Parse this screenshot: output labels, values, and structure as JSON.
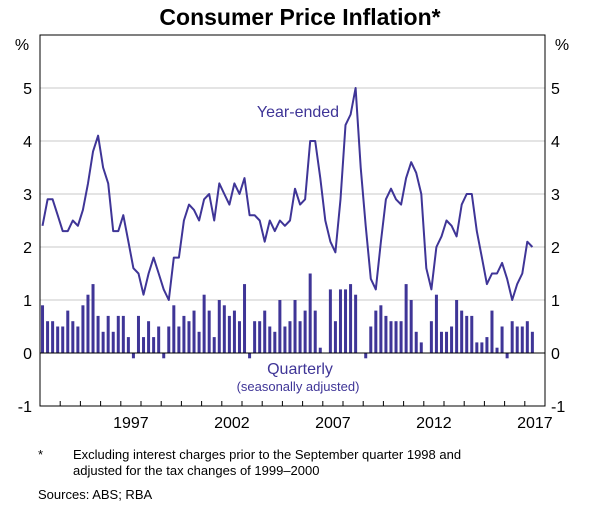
{
  "chart_data": {
    "type": "bar+line",
    "title": "Consumer Price Inflation*",
    "ylabel_left": "%",
    "ylabel_right": "%",
    "ylim": [
      -1,
      6
    ],
    "yticks": [
      "-1",
      "0",
      "1",
      "2",
      "3",
      "4",
      "5"
    ],
    "xlim": [
      "1993 Q1",
      "2017 Q4"
    ],
    "xtick_labels": [
      "1997",
      "2002",
      "2007",
      "2012",
      "2017"
    ],
    "grid": true,
    "colors": {
      "series": "#3f3597",
      "grid": "#c8c8c8"
    },
    "start_quarter": "1993 Q1",
    "frequency": "quarterly",
    "series": [
      {
        "name": "Year-ended",
        "type": "line",
        "values": [
          2.4,
          2.9,
          2.9,
          2.6,
          2.3,
          2.3,
          2.5,
          2.4,
          2.7,
          3.2,
          3.8,
          4.1,
          3.5,
          3.2,
          2.3,
          2.3,
          2.6,
          2.1,
          1.6,
          1.5,
          1.1,
          1.5,
          1.8,
          1.5,
          1.2,
          1.0,
          1.8,
          1.8,
          2.5,
          2.8,
          2.7,
          2.5,
          2.9,
          3.0,
          2.5,
          3.2,
          3.0,
          2.8,
          3.2,
          3.0,
          3.3,
          2.6,
          2.6,
          2.5,
          2.1,
          2.5,
          2.3,
          2.5,
          2.4,
          2.5,
          3.1,
          2.8,
          2.9,
          4.0,
          4.0,
          3.3,
          2.5,
          2.1,
          1.9,
          2.9,
          4.3,
          4.5,
          5.0,
          3.5,
          2.4,
          1.4,
          1.2,
          2.1,
          2.9,
          3.1,
          2.9,
          2.8,
          3.3,
          3.6,
          3.4,
          3.0,
          1.6,
          1.2,
          2.0,
          2.2,
          2.5,
          2.4,
          2.2,
          2.8,
          3.0,
          3.0,
          2.3,
          1.8,
          1.3,
          1.5,
          1.5,
          1.7,
          1.4,
          1.0,
          1.3,
          1.5,
          2.1,
          2.0
        ]
      },
      {
        "name": "Quarterly",
        "subtitle": "(seasonally adjusted)",
        "type": "bar",
        "values": [
          0.9,
          0.6,
          0.6,
          0.5,
          0.5,
          0.8,
          0.6,
          0.5,
          0.9,
          1.1,
          1.3,
          0.7,
          0.4,
          0.7,
          0.4,
          0.7,
          0.7,
          0.3,
          -0.1,
          0.7,
          0.3,
          0.6,
          0.3,
          0.5,
          -0.1,
          0.5,
          0.9,
          0.5,
          0.7,
          0.6,
          0.8,
          0.4,
          1.1,
          0.8,
          0.3,
          1.0,
          0.9,
          0.7,
          0.8,
          0.6,
          1.3,
          -0.1,
          0.6,
          0.6,
          0.8,
          0.5,
          0.4,
          1.0,
          0.5,
          0.6,
          1.0,
          0.6,
          0.8,
          1.5,
          0.8,
          0.1,
          0.0,
          1.2,
          0.6,
          1.2,
          1.2,
          1.3,
          1.1,
          0.0,
          -0.1,
          0.5,
          0.8,
          0.9,
          0.7,
          0.6,
          0.6,
          0.6,
          1.3,
          1.0,
          0.4,
          0.2,
          0.0,
          0.6,
          1.1,
          0.4,
          0.4,
          0.5,
          1.0,
          0.8,
          0.7,
          0.7,
          0.2,
          0.2,
          0.3,
          0.8,
          0.1,
          0.5,
          -0.1,
          0.6,
          0.5,
          0.5,
          0.6,
          0.4
        ]
      }
    ]
  },
  "footnote": {
    "marker": "*",
    "text_line1": "Excluding interest charges prior to the September quarter 1998 and",
    "text_line2": "adjusted for the tax changes of 1999–2000"
  },
  "sources": "Sources: ABS; RBA"
}
